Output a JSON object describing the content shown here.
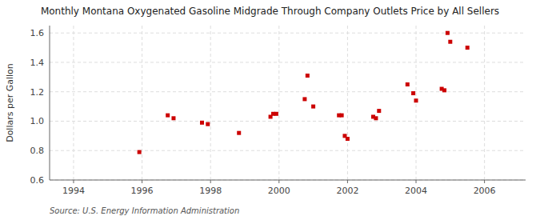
{
  "chart_data": {
    "type": "scatter",
    "title": "Monthly Montana Oxygenated Gasoline Midgrade Through Company Outlets Price by All Sellers",
    "y_label": "Dollars per Gallon",
    "source": "Source: U.S. Energy Information Administration",
    "color": "#cc0000",
    "marker": "square",
    "grid": true,
    "xlim": [
      1993.3,
      2007.2
    ],
    "ylim": [
      0.6,
      1.65
    ],
    "xticks": [
      1994,
      1996,
      1998,
      2000,
      2002,
      2004,
      2006
    ],
    "yticks": [
      0.6,
      0.8,
      {
        "value": 1.0,
        "label": "1.0"
      },
      1.2,
      1.4,
      1.6
    ],
    "x": [
      1995.92,
      1996.75,
      1996.92,
      1997.75,
      1997.92,
      1998.83,
      1999.75,
      1999.83,
      1999.92,
      2000.75,
      2000.83,
      2001.0,
      2001.75,
      2001.83,
      2001.92,
      2002.0,
      2002.75,
      2002.83,
      2002.92,
      2003.75,
      2003.92,
      2004.0,
      2004.75,
      2004.83,
      2004.92,
      2005.0,
      2005.5
    ],
    "values": [
      0.79,
      1.04,
      1.02,
      0.99,
      0.98,
      0.92,
      1.03,
      1.05,
      1.05,
      1.15,
      1.31,
      1.1,
      1.04,
      1.04,
      0.9,
      0.88,
      1.03,
      1.02,
      1.07,
      1.25,
      1.19,
      1.14,
      1.22,
      1.21,
      1.6,
      1.54,
      1.5
    ]
  }
}
